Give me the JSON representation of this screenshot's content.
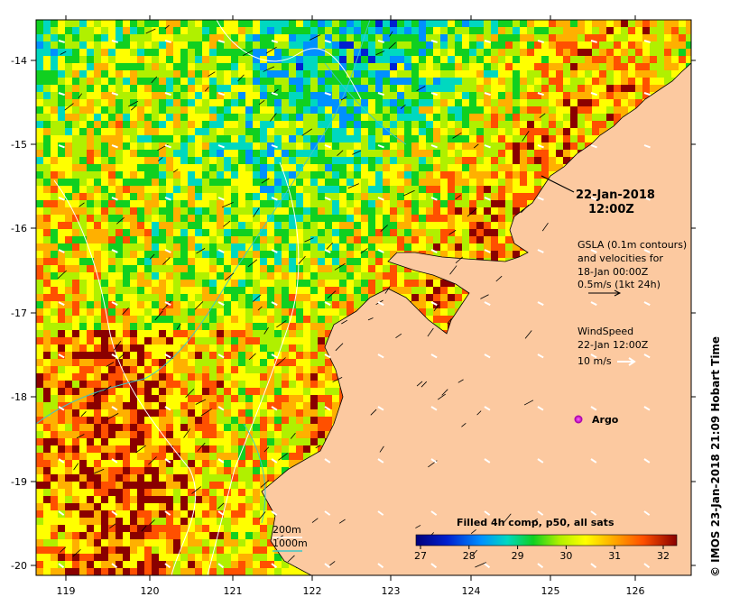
{
  "map": {
    "date_line1": "22-Jan-2018",
    "date_line2": "12:00Z",
    "gsla_text": [
      "GSLA (0.1m contours)",
      "and velocities for",
      "18-Jan 00:00Z",
      "0.5m/s (1kt 24h)"
    ],
    "wind_text": [
      "WindSpeed",
      "22-Jan 12:00Z",
      "10 m/s"
    ],
    "argo_label": "Argo",
    "contour_legend": [
      "200m",
      "1000m"
    ],
    "colorbar_title": "Filled 4h comp, p50, all sats",
    "colorbar_ticks": [
      "27",
      "28",
      "29",
      "30",
      "31",
      "32"
    ],
    "credit": "© IMOS 23-Jan-2018 21:09 Hobart Time",
    "lat_ticks": [
      "-14",
      "-15",
      "-16",
      "-17",
      "-18",
      "-19",
      "-20"
    ],
    "lon_ticks": [
      "119",
      "120",
      "121",
      "122",
      "123",
      "124",
      "125",
      "126"
    ],
    "colors": {
      "land": "#fcc9a0",
      "contour_200": "#ffffff",
      "contour_1000": "#3cc8c8",
      "argo": "#cc33cc"
    }
  }
}
